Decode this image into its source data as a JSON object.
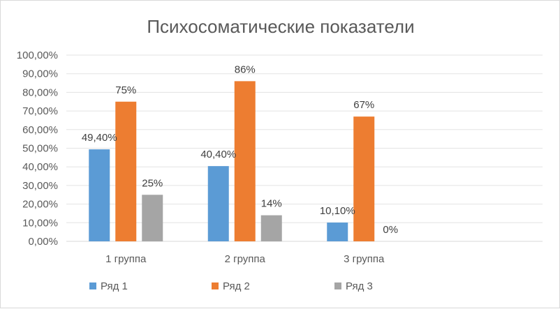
{
  "chart_data": {
    "type": "bar",
    "title": "Психосоматические показатели",
    "categories": [
      "1 группа",
      "2 группа",
      "3 группа",
      ""
    ],
    "series": [
      {
        "name": "Ряд 1",
        "color": "#5b9bd5",
        "values": [
          49.4,
          40.4,
          10.1,
          null
        ],
        "labels": [
          "49,40%",
          "40,40%",
          "10,10%",
          ""
        ]
      },
      {
        "name": "Ряд 2",
        "color": "#ed7d31",
        "values": [
          75,
          86,
          67,
          null
        ],
        "labels": [
          "75%",
          "86%",
          "67%",
          ""
        ]
      },
      {
        "name": "Ряд 3",
        "color": "#a5a5a5",
        "values": [
          25,
          14,
          0,
          null
        ],
        "labels": [
          "25%",
          "14%",
          "0%",
          ""
        ]
      }
    ],
    "yticks": [
      "0,00%",
      "10,00%",
      "20,00%",
      "30,00%",
      "40,00%",
      "50,00%",
      "60,00%",
      "70,00%",
      "80,00%",
      "90,00%",
      "100,00%"
    ],
    "ylim": [
      0,
      100
    ],
    "grid": true,
    "legend": "bottom-left"
  }
}
